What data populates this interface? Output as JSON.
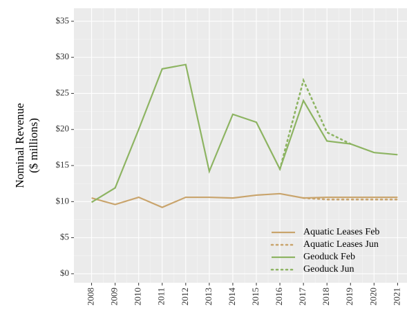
{
  "chart_data": {
    "type": "line",
    "y_label": [
      "Nominal Revenue",
      "($ millions)"
    ],
    "x": [
      2008,
      2009,
      2010,
      2011,
      2012,
      2013,
      2014,
      2015,
      2016,
      2017,
      2018,
      2019,
      2020,
      2021
    ],
    "xlim": [
      2007.25,
      2021.4
    ],
    "xticks": [
      2008,
      2009,
      2010,
      2011,
      2012,
      2013,
      2014,
      2015,
      2016,
      2017,
      2018,
      2019,
      2020,
      2021
    ],
    "ylim": [
      -1.25,
      36.8
    ],
    "yticks": [
      {
        "value": 0,
        "label": "$0"
      },
      {
        "value": 5,
        "label": "$5"
      },
      {
        "value": 10,
        "label": "$10"
      },
      {
        "value": 15,
        "label": "$15"
      },
      {
        "value": 20,
        "label": "$20"
      },
      {
        "value": 25,
        "label": "$25"
      },
      {
        "value": 30,
        "label": "$30"
      },
      {
        "value": 35,
        "label": "$35"
      }
    ],
    "grid": true,
    "legend": "bottom-right",
    "series": [
      {
        "name": "Aquatic Leases Feb",
        "color": "#c9a46c",
        "style": "solid",
        "values": [
          10.5,
          9.6,
          10.6,
          9.2,
          10.6,
          10.6,
          10.5,
          10.9,
          11.1,
          10.5,
          10.6,
          10.6,
          10.6,
          10.6
        ]
      },
      {
        "name": "Aquatic Leases Jun",
        "color": "#c9a46c",
        "style": "dotted",
        "values": [
          null,
          null,
          null,
          null,
          null,
          null,
          null,
          null,
          null,
          10.5,
          10.3,
          10.3,
          10.3,
          10.3
        ]
      },
      {
        "name": "Geoduck Feb",
        "color": "#8db462",
        "style": "solid",
        "values": [
          9.9,
          11.9,
          20.0,
          28.4,
          29.0,
          14.2,
          22.1,
          21.0,
          14.5,
          24.0,
          18.4,
          18.0,
          16.8,
          16.5
        ]
      },
      {
        "name": "Geoduck Jun",
        "color": "#8db462",
        "style": "dotted",
        "values": [
          null,
          null,
          null,
          null,
          null,
          null,
          null,
          null,
          14.5,
          26.8,
          19.6,
          18.0,
          null,
          null
        ]
      }
    ]
  }
}
